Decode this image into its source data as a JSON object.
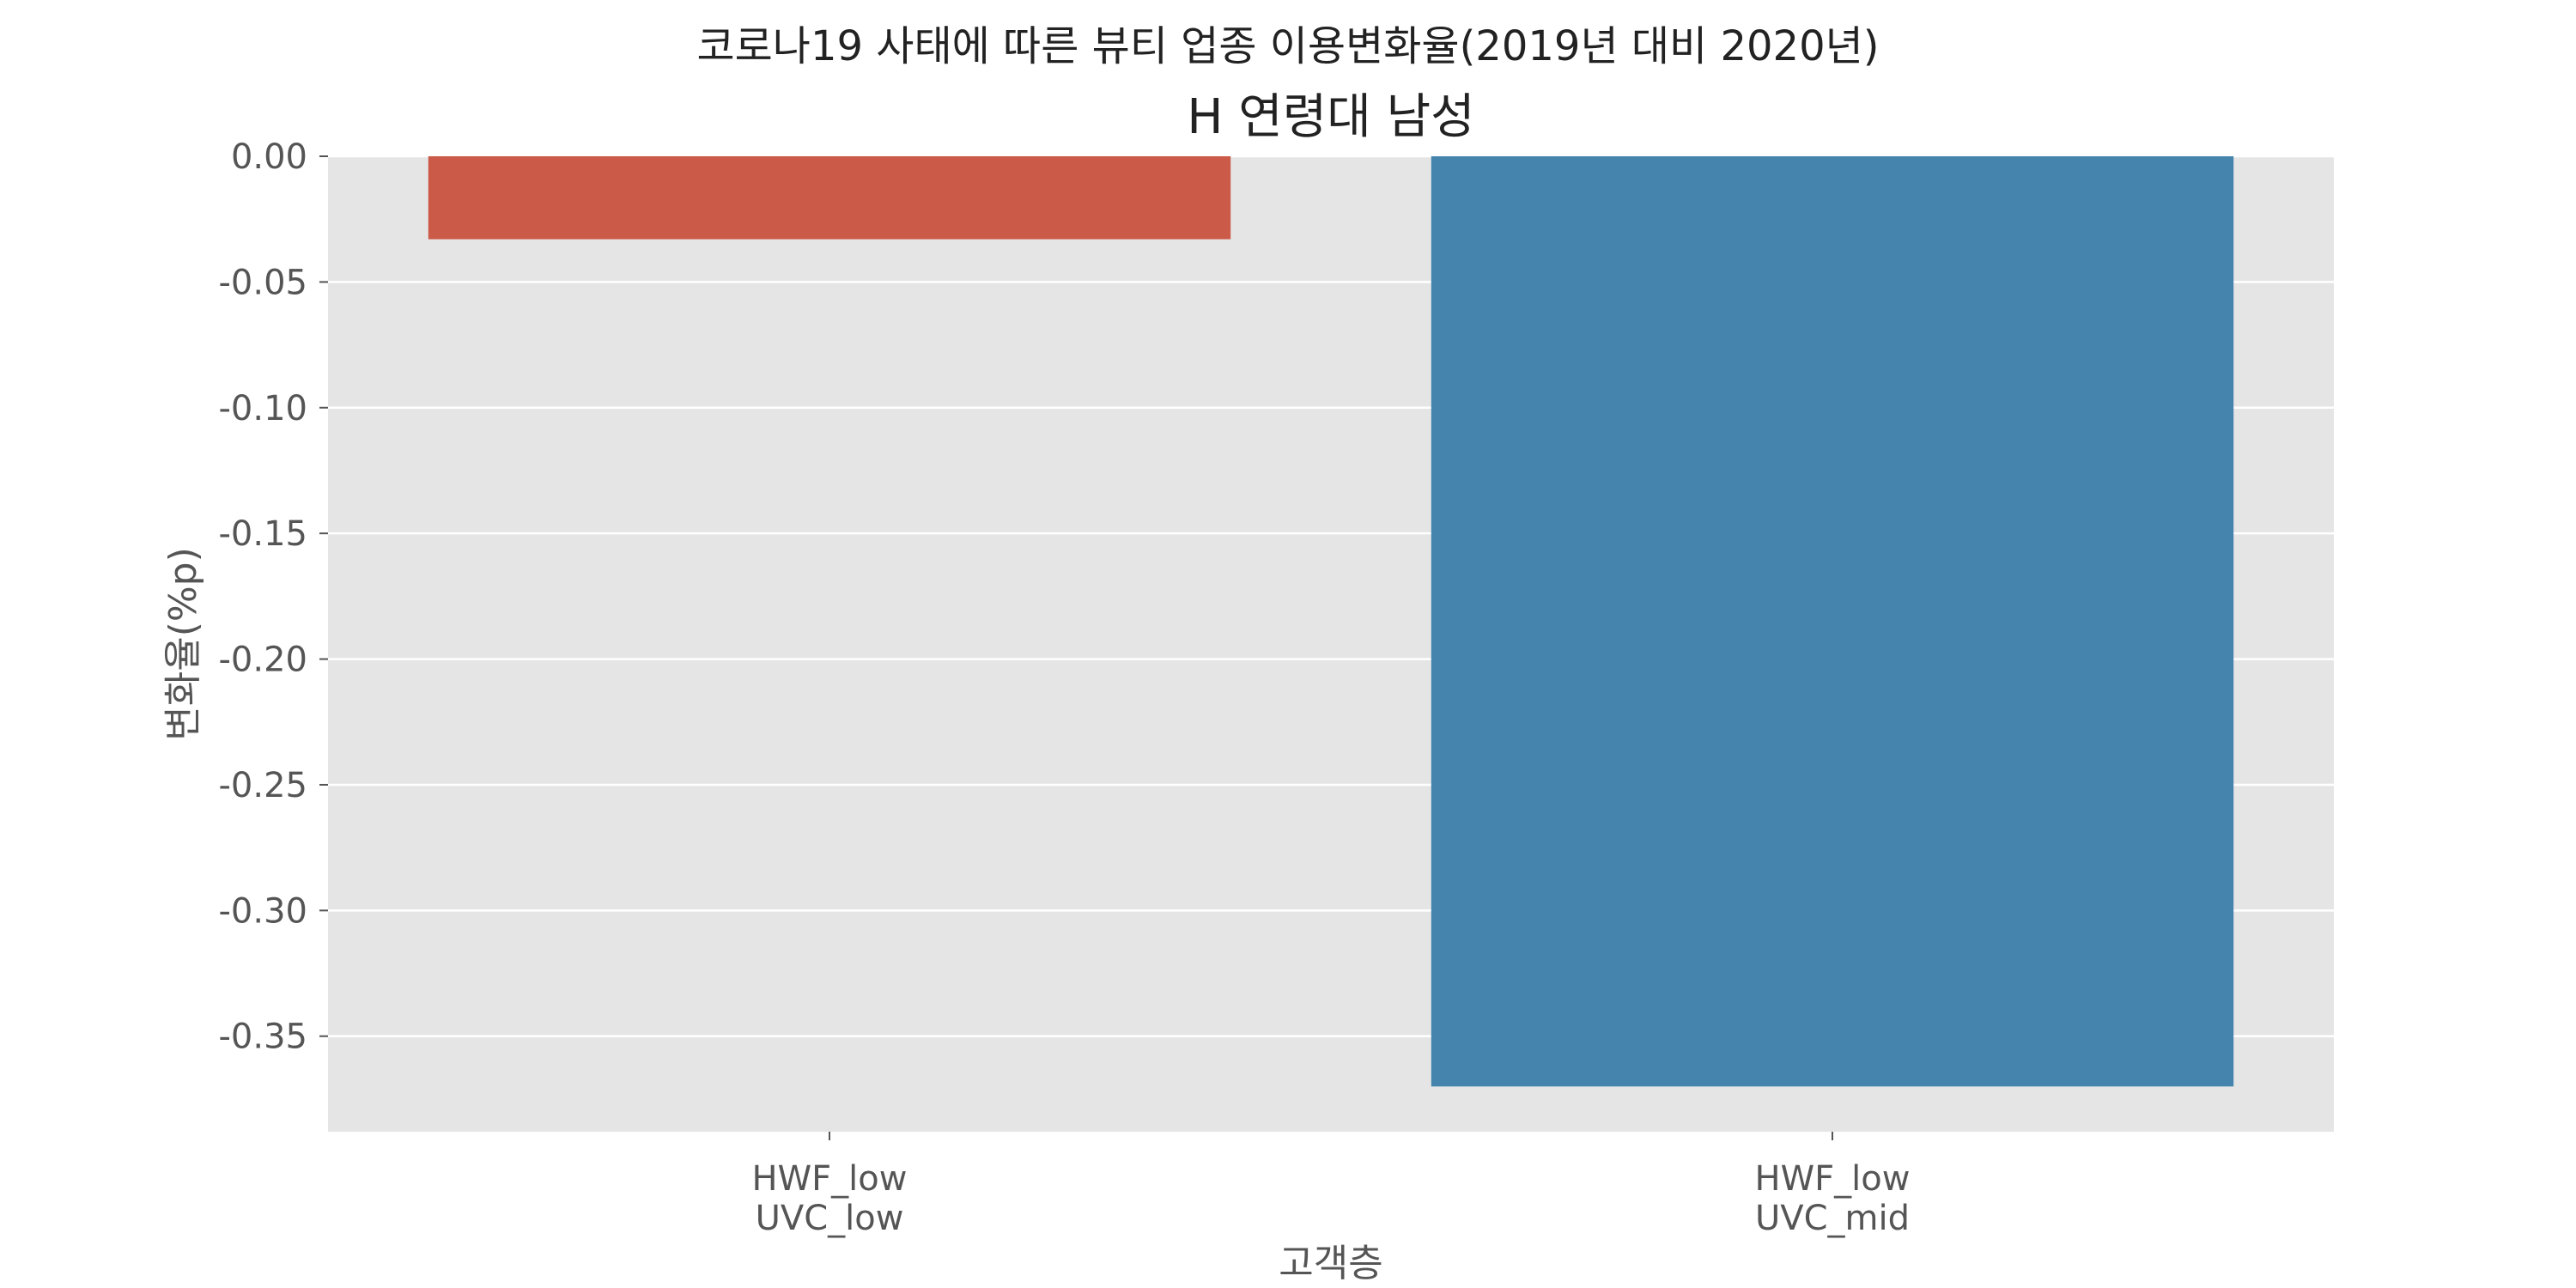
{
  "figure": {
    "suptitle": "코로나19 사태에 따른 뷰티 업종 이용변화율(2019년 대비 2020년)"
  },
  "chart_data": {
    "type": "bar",
    "title": "H 연령대 남성",
    "xlabel": "고객층",
    "ylabel": "변화율(%p)",
    "categories": [
      [
        "HWF_low",
        "UVC_low"
      ],
      [
        "HWF_low",
        "UVC_mid"
      ]
    ],
    "values": [
      -0.033,
      -0.37
    ],
    "bar_colors": [
      "#cc5a48",
      "#4585ad"
    ],
    "ylim": [
      -0.388,
      0.0
    ],
    "yticks": [
      0.0,
      -0.05,
      -0.1,
      -0.15,
      -0.2,
      -0.25,
      -0.3,
      -0.35
    ],
    "ytick_labels": [
      "0.00",
      "-0.05",
      "-0.10",
      "-0.15",
      "-0.20",
      "-0.25",
      "-0.30",
      "-0.35"
    ],
    "grid": true,
    "background": "#e5e5e5",
    "legend": "none"
  }
}
